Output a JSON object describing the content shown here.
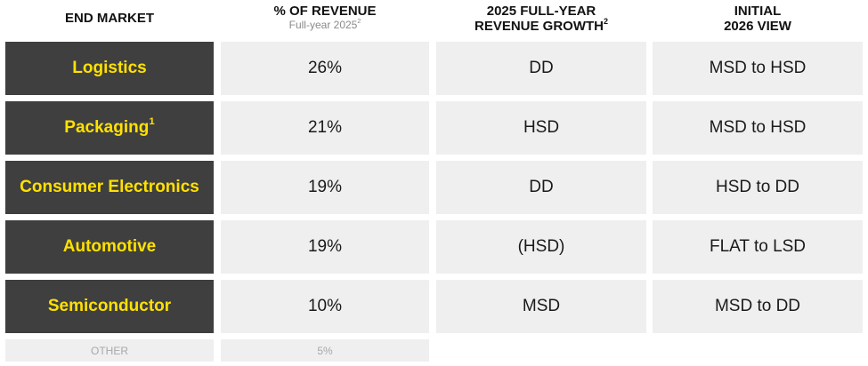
{
  "headers": {
    "market": "END MARKET",
    "revenue_share": "% OF REVENUE",
    "revenue_share_sub": "Full-year 2025",
    "revenue_share_sub_note": "2",
    "growth_line1": "2025 FULL-YEAR",
    "growth_line2": "REVENUE GROWTH",
    "growth_note": "2",
    "view_line1": "INITIAL",
    "view_line2": "2026 VIEW"
  },
  "rows": [
    {
      "market": "Logistics",
      "note": "",
      "share": "26%",
      "growth": "DD",
      "view": "MSD to HSD"
    },
    {
      "market": "Packaging",
      "note": "1",
      "share": "21%",
      "growth": "HSD",
      "view": "MSD to HSD"
    },
    {
      "market": "Consumer Electronics",
      "note": "",
      "share": "19%",
      "growth": "DD",
      "view": "HSD to DD"
    },
    {
      "market": "Automotive",
      "note": "",
      "share": "19%",
      "growth": "(HSD)",
      "view": "FLAT to LSD"
    },
    {
      "market": "Semiconductor",
      "note": "",
      "share": "10%",
      "growth": "MSD",
      "view": "MSD to DD"
    }
  ],
  "other": {
    "market": "OTHER",
    "share": "5%"
  },
  "colors": {
    "market_bg": "#3f3f3f",
    "market_text": "#ffe100",
    "value_bg": "#efefef"
  }
}
